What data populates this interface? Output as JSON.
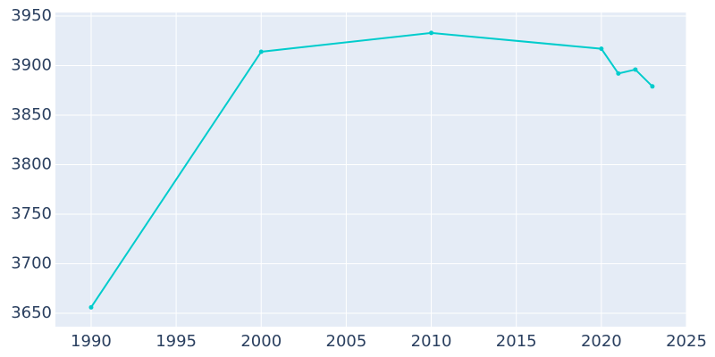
{
  "chart_data": {
    "type": "line",
    "x": [
      1990,
      2000,
      2010,
      2020,
      2021,
      2022,
      2023
    ],
    "series": [
      {
        "color": "#00cccc",
        "values": [
          3656,
          3914,
          3933,
          3917,
          3892,
          3896,
          3879
        ]
      }
    ],
    "xlim": [
      1987.9,
      2025
    ],
    "xticks": [
      1990,
      1995,
      2000,
      2005,
      2010,
      2015,
      2020,
      2025
    ],
    "ylim": [
      3636.5,
      3953.6
    ],
    "yticks": [
      3650,
      3700,
      3750,
      3800,
      3850,
      3900,
      3950
    ],
    "grid": true
  }
}
